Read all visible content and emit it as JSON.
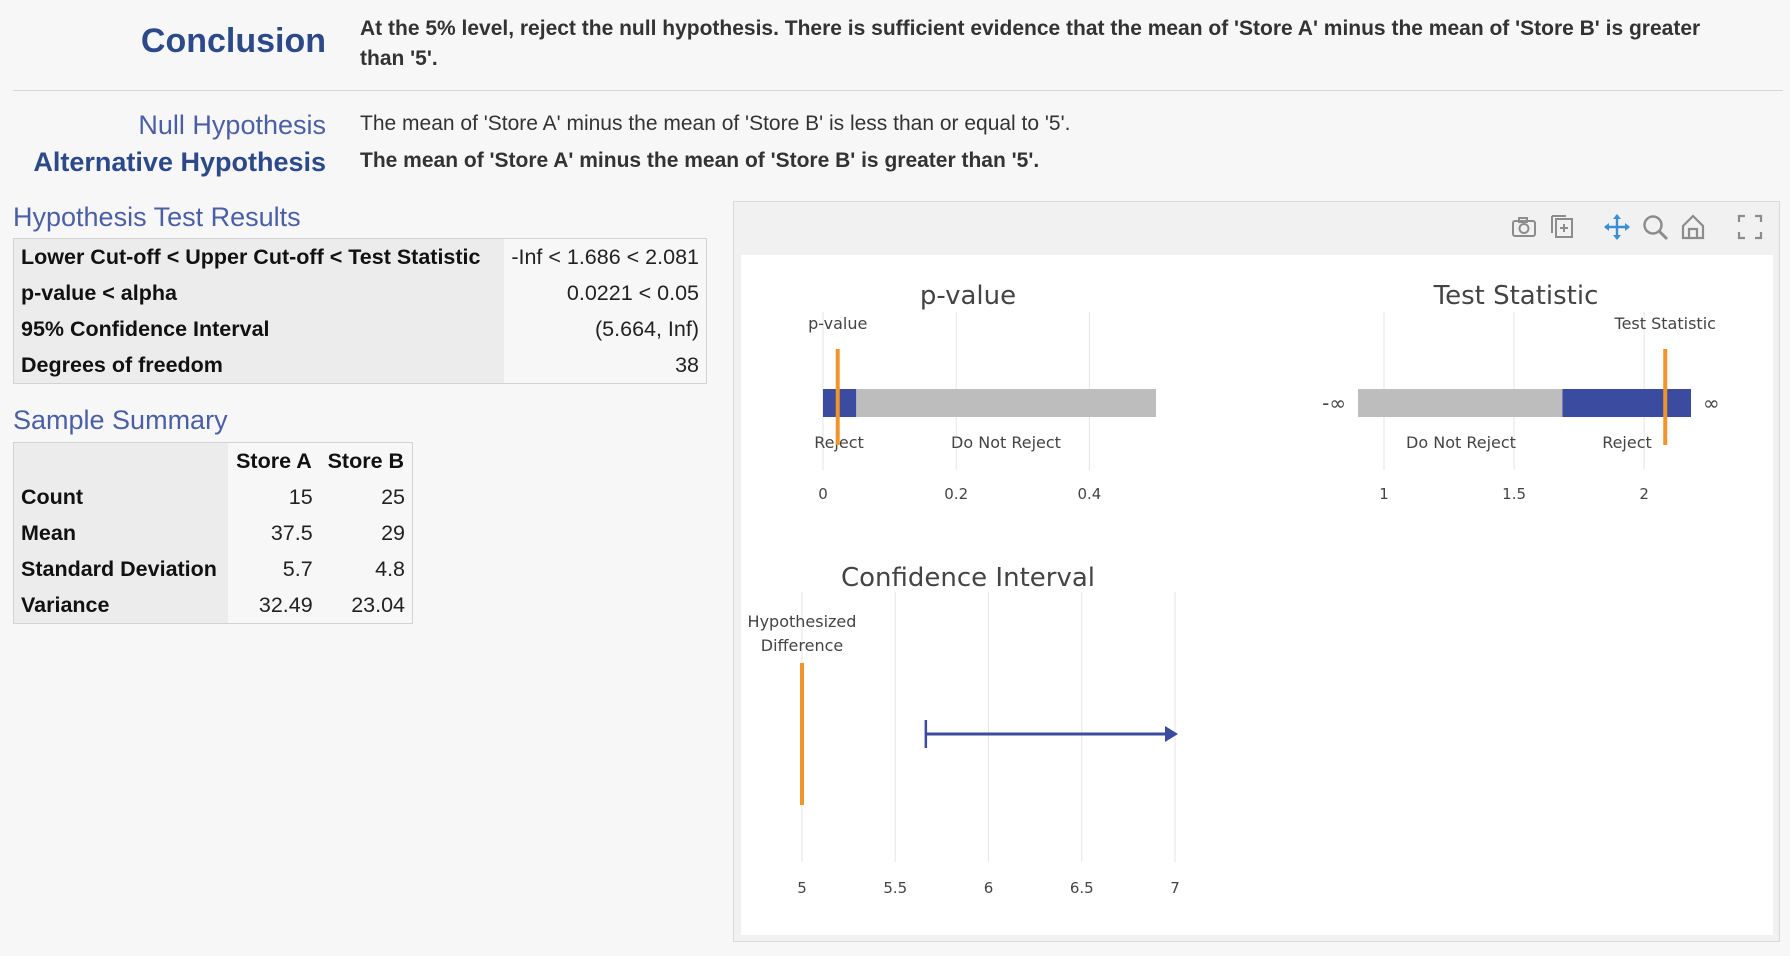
{
  "header": {
    "conclusion_label": "Conclusion",
    "conclusion_text": "At the 5% level, reject the null hypothesis. There is sufficient evidence that the mean of 'Store A' minus the mean of 'Store B' is greater than '5'.",
    "null_label": "Null Hypothesis",
    "null_text": "The mean of 'Store A' minus the mean of 'Store B' is less than or equal to '5'.",
    "alt_label": "Alternative Hypothesis",
    "alt_text": "The mean of 'Store A' minus the mean of 'Store B' is greater than '5'."
  },
  "results": {
    "title": "Hypothesis Test Results",
    "rows": [
      {
        "label": "Lower Cut-off < Upper Cut-off < Test Statistic",
        "value": "-Inf < 1.686 < 2.081"
      },
      {
        "label": "p-value < alpha",
        "value": "0.0221 < 0.05"
      },
      {
        "label": "95% Confidence Interval",
        "value": "(5.664, Inf)"
      },
      {
        "label": "Degrees of freedom",
        "value": "38"
      }
    ]
  },
  "summary": {
    "title": "Sample Summary",
    "columns": [
      "Store A",
      "Store B"
    ],
    "rows": [
      {
        "label": "Count",
        "a": "15",
        "b": "25"
      },
      {
        "label": "Mean",
        "a": "37.5",
        "b": "29"
      },
      {
        "label": "Standard Deviation",
        "a": "5.7",
        "b": "4.8"
      },
      {
        "label": "Variance",
        "a": "32.49",
        "b": "23.04"
      }
    ]
  },
  "toolbar": {
    "icons": [
      "camera-icon",
      "add-plot-icon",
      "pan-icon",
      "zoom-icon",
      "home-icon",
      "fullscreen-icon"
    ],
    "accent_color": "#3a8fd0"
  },
  "chart_data": [
    {
      "type": "bar",
      "title": "p-value",
      "orientation": "horizontal",
      "segments": [
        {
          "label": "Reject",
          "from": 0,
          "to": 0.05,
          "color": "#3a4ba0"
        },
        {
          "label": "Do Not Reject",
          "from": 0.05,
          "to": 0.5,
          "color": "#bdbdbd"
        }
      ],
      "marker": {
        "label": "p-value",
        "value": 0.0221,
        "color": "#f0952a"
      },
      "x_ticks": [
        0,
        0.2,
        0.4
      ],
      "x_tick_labels": [
        "0",
        "0.2",
        "0.4"
      ],
      "xlim": [
        0,
        0.5
      ]
    },
    {
      "type": "bar",
      "title": "Test Statistic",
      "orientation": "horizontal",
      "segments": [
        {
          "label": "Do Not Reject",
          "from": 0.9,
          "to": 1.686,
          "color": "#bdbdbd"
        },
        {
          "label": "Reject",
          "from": 1.686,
          "to": 2.18,
          "color": "#3a4ba0"
        }
      ],
      "left_end_label": "-∞",
      "right_end_label": "∞",
      "marker": {
        "label": "Test Statistic",
        "value": 2.081,
        "color": "#f0952a"
      },
      "x_ticks": [
        1,
        1.5,
        2
      ],
      "x_tick_labels": [
        "1",
        "1.5",
        "2"
      ],
      "xlim": [
        0.9,
        2.18
      ]
    },
    {
      "type": "line",
      "title": "Confidence Interval",
      "interval": {
        "lower": 5.664,
        "upper": "Inf",
        "color": "#3a4ba0"
      },
      "hypothesized": {
        "label_lines": [
          "Hypothesized",
          "Difference"
        ],
        "value": 5,
        "color": "#f0952a"
      },
      "x_ticks": [
        5,
        5.5,
        6,
        6.5,
        7
      ],
      "x_tick_labels": [
        "5",
        "5.5",
        "6",
        "6.5",
        "7"
      ],
      "xlim": [
        5,
        7
      ]
    }
  ]
}
